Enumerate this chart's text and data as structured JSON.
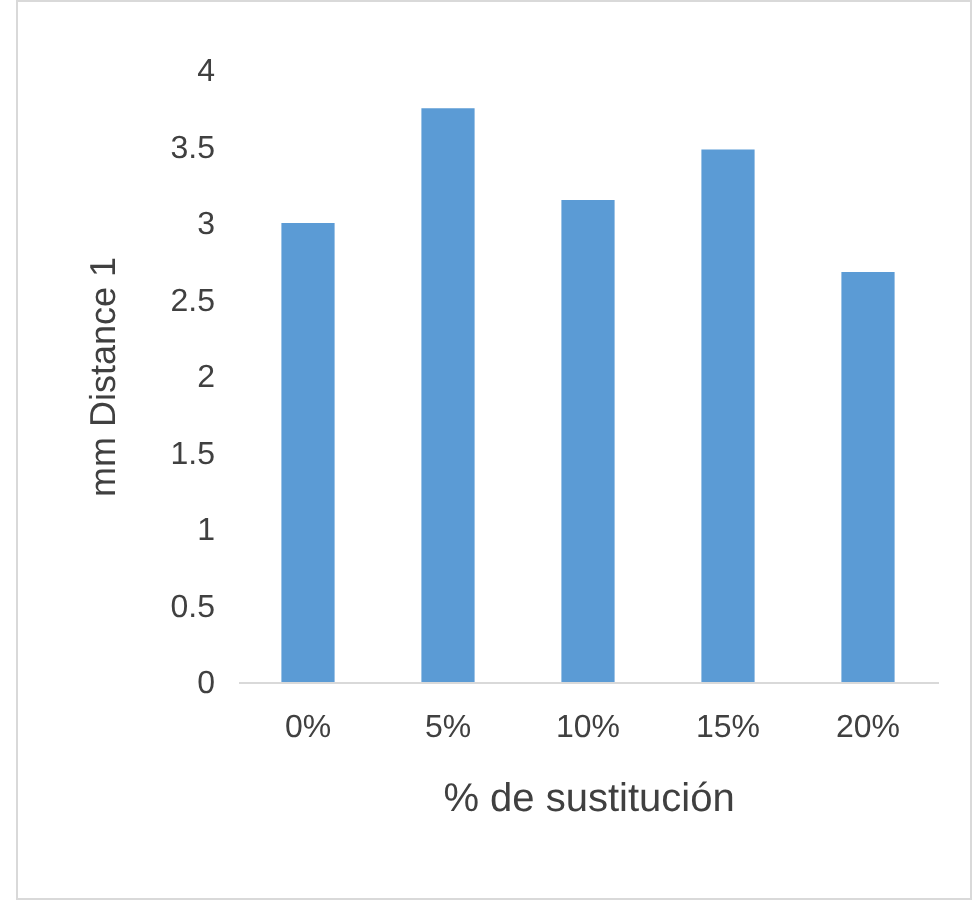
{
  "chart_data": {
    "type": "bar",
    "xlabel": "% de sustitución",
    "ylabel": "mm Distance 1",
    "categories": [
      "0%",
      "5%",
      "10%",
      "15%",
      "20%"
    ],
    "values": [
      3.0,
      3.75,
      3.15,
      3.48,
      2.68
    ],
    "color": "#5b9bd5",
    "ylim": [
      0,
      4
    ],
    "yticks": [
      0,
      0.5,
      1,
      1.5,
      2,
      2.5,
      3,
      3.5,
      4
    ],
    "grid": false
  }
}
